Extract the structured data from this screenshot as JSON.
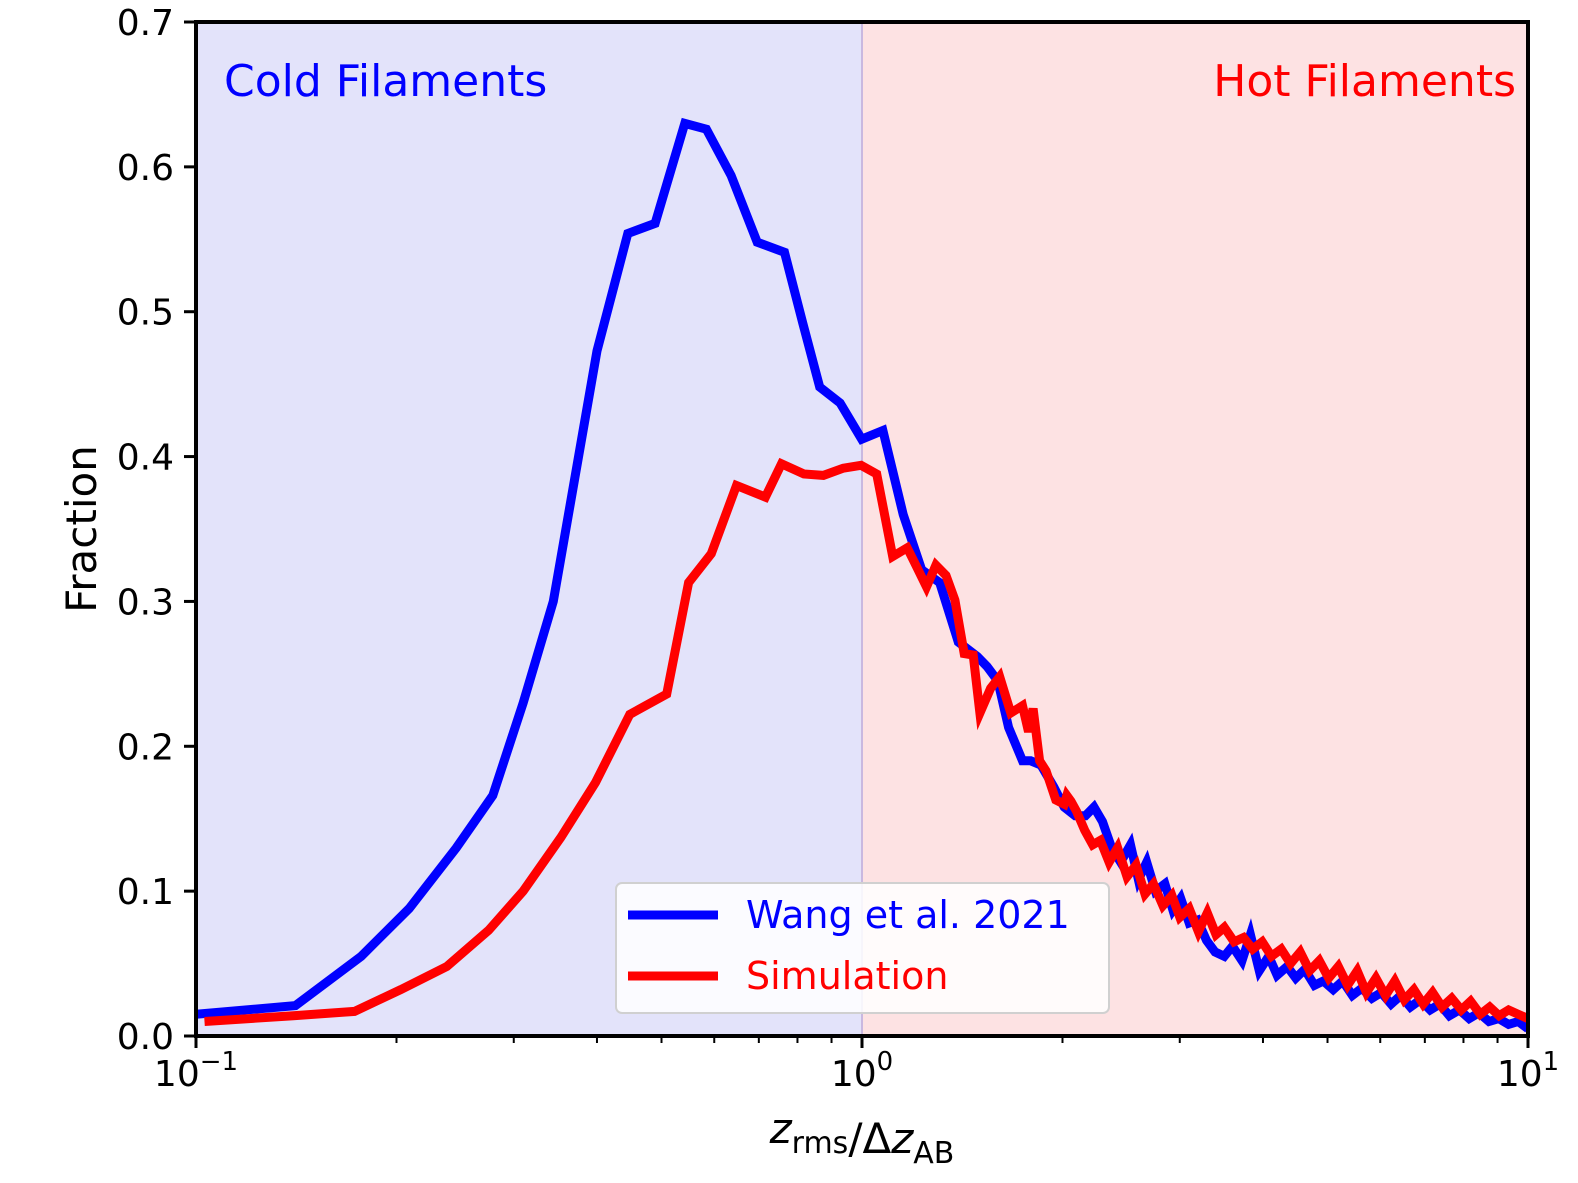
{
  "chart_data": {
    "type": "line",
    "x_scale": "log",
    "xlim": [
      0.1,
      10
    ],
    "ylim": [
      0.0,
      0.7
    ],
    "ylabel": "Fraction",
    "xlabel": {
      "main": "z",
      "main_sub": "rms",
      "sep": "/Δ",
      "den": "z",
      "den_sub": "AB"
    },
    "x_ticks": [
      {
        "value": 0.1,
        "base": "10",
        "exp": "−1"
      },
      {
        "value": 1,
        "base": "10",
        "exp": "0"
      },
      {
        "value": 10,
        "base": "10",
        "exp": "1"
      }
    ],
    "y_ticks": [
      {
        "value": 0.0,
        "label": "0.0"
      },
      {
        "value": 0.1,
        "label": "0.1"
      },
      {
        "value": 0.2,
        "label": "0.2"
      },
      {
        "value": 0.3,
        "label": "0.3"
      },
      {
        "value": 0.4,
        "label": "0.4"
      },
      {
        "value": 0.5,
        "label": "0.5"
      },
      {
        "value": 0.6,
        "label": "0.6"
      },
      {
        "value": 0.7,
        "label": "0.7"
      }
    ],
    "regions": [
      {
        "label": "Cold Filaments",
        "x_from": 0.1,
        "x_to": 1.0,
        "color": "#e3e3fa",
        "text_color": "#0000ff"
      },
      {
        "label": "Hot Filaments",
        "x_from": 1.0,
        "x_to": 10.0,
        "color": "#fde2e3",
        "text_color": "#ff0000"
      }
    ],
    "divider_color": "#c9b8e0",
    "legend_position": "lower-center",
    "series": [
      {
        "name": "Wang et al. 2021",
        "color": "#0000ff",
        "x": [
          0.1,
          0.141,
          0.177,
          0.209,
          0.246,
          0.279,
          0.31,
          0.344,
          0.4,
          0.445,
          0.489,
          0.542,
          0.584,
          0.636,
          0.696,
          0.765,
          0.815,
          0.864,
          0.927,
          0.999,
          1.075,
          1.153,
          1.229,
          1.308,
          1.395,
          1.49,
          1.541,
          1.6,
          1.66,
          1.742,
          1.792,
          1.857,
          1.94,
          2.012,
          2.09,
          2.165,
          2.23,
          2.297,
          2.37,
          2.445,
          2.53,
          2.6,
          2.676,
          2.758,
          2.85,
          2.93,
          3.01,
          3.1,
          3.19,
          3.29,
          3.39,
          3.5,
          3.6,
          3.72,
          3.83,
          3.95,
          4.08,
          4.2,
          4.35,
          4.48,
          4.62,
          4.78,
          4.93,
          5.1,
          5.27,
          5.45,
          5.63,
          5.83,
          6.02,
          6.23,
          6.44,
          6.66,
          6.89,
          7.13,
          7.37,
          7.62,
          7.89,
          8.16,
          8.44,
          8.74,
          9.04,
          9.35,
          9.67,
          10.0
        ],
        "values": [
          0.015,
          0.021,
          0.055,
          0.088,
          0.13,
          0.166,
          0.23,
          0.3,
          0.473,
          0.554,
          0.561,
          0.63,
          0.626,
          0.594,
          0.548,
          0.541,
          0.492,
          0.448,
          0.437,
          0.412,
          0.418,
          0.36,
          0.322,
          0.313,
          0.272,
          0.262,
          0.255,
          0.245,
          0.213,
          0.19,
          0.19,
          0.187,
          0.172,
          0.158,
          0.152,
          0.152,
          0.158,
          0.148,
          0.13,
          0.12,
          0.132,
          0.108,
          0.12,
          0.1,
          0.105,
          0.087,
          0.095,
          0.078,
          0.08,
          0.066,
          0.058,
          0.055,
          0.062,
          0.052,
          0.07,
          0.045,
          0.055,
          0.042,
          0.048,
          0.04,
          0.046,
          0.035,
          0.038,
          0.032,
          0.038,
          0.028,
          0.033,
          0.026,
          0.03,
          0.022,
          0.028,
          0.02,
          0.025,
          0.018,
          0.022,
          0.014,
          0.018,
          0.012,
          0.016,
          0.01,
          0.012,
          0.008,
          0.01,
          0.005
        ]
      },
      {
        "name": "Simulation",
        "color": "#ff0000",
        "x": [
          0.103,
          0.14,
          0.173,
          0.203,
          0.238,
          0.275,
          0.31,
          0.353,
          0.398,
          0.448,
          0.509,
          0.549,
          0.594,
          0.648,
          0.716,
          0.757,
          0.818,
          0.875,
          0.937,
          0.997,
          1.052,
          1.112,
          1.169,
          1.205,
          1.25,
          1.291,
          1.337,
          1.379,
          1.424,
          1.469,
          1.503,
          1.56,
          1.61,
          1.673,
          1.742,
          1.778,
          1.807,
          1.848,
          1.89,
          1.954,
          2.012,
          2.03,
          2.06,
          2.1,
          2.16,
          2.22,
          2.28,
          2.35,
          2.42,
          2.5,
          2.58,
          2.66,
          2.74,
          2.83,
          2.92,
          3.0,
          3.1,
          3.2,
          3.3,
          3.4,
          3.5,
          3.62,
          3.74,
          3.86,
          3.99,
          4.12,
          4.26,
          4.4,
          4.55,
          4.7,
          4.86,
          5.02,
          5.19,
          5.36,
          5.54,
          5.72,
          5.91,
          6.11,
          6.31,
          6.52,
          6.74,
          6.96,
          7.19,
          7.43,
          7.68,
          7.94,
          8.2,
          8.48,
          8.76,
          9.05,
          9.35,
          9.67,
          10.0
        ],
        "values": [
          0.01,
          0.014,
          0.017,
          0.032,
          0.048,
          0.073,
          0.1,
          0.137,
          0.175,
          0.222,
          0.236,
          0.313,
          0.333,
          0.38,
          0.372,
          0.395,
          0.388,
          0.387,
          0.392,
          0.394,
          0.388,
          0.331,
          0.337,
          0.325,
          0.31,
          0.325,
          0.318,
          0.301,
          0.264,
          0.263,
          0.223,
          0.24,
          0.248,
          0.223,
          0.228,
          0.21,
          0.226,
          0.19,
          0.183,
          0.163,
          0.16,
          0.166,
          0.162,
          0.155,
          0.142,
          0.132,
          0.135,
          0.12,
          0.13,
          0.11,
          0.118,
          0.098,
          0.105,
          0.09,
          0.097,
          0.082,
          0.088,
          0.072,
          0.085,
          0.07,
          0.075,
          0.065,
          0.068,
          0.06,
          0.065,
          0.055,
          0.06,
          0.05,
          0.058,
          0.045,
          0.052,
          0.04,
          0.048,
          0.035,
          0.045,
          0.03,
          0.04,
          0.028,
          0.038,
          0.025,
          0.032,
          0.022,
          0.03,
          0.02,
          0.026,
          0.018,
          0.024,
          0.015,
          0.02,
          0.014,
          0.018,
          0.015,
          0.012
        ]
      }
    ]
  }
}
